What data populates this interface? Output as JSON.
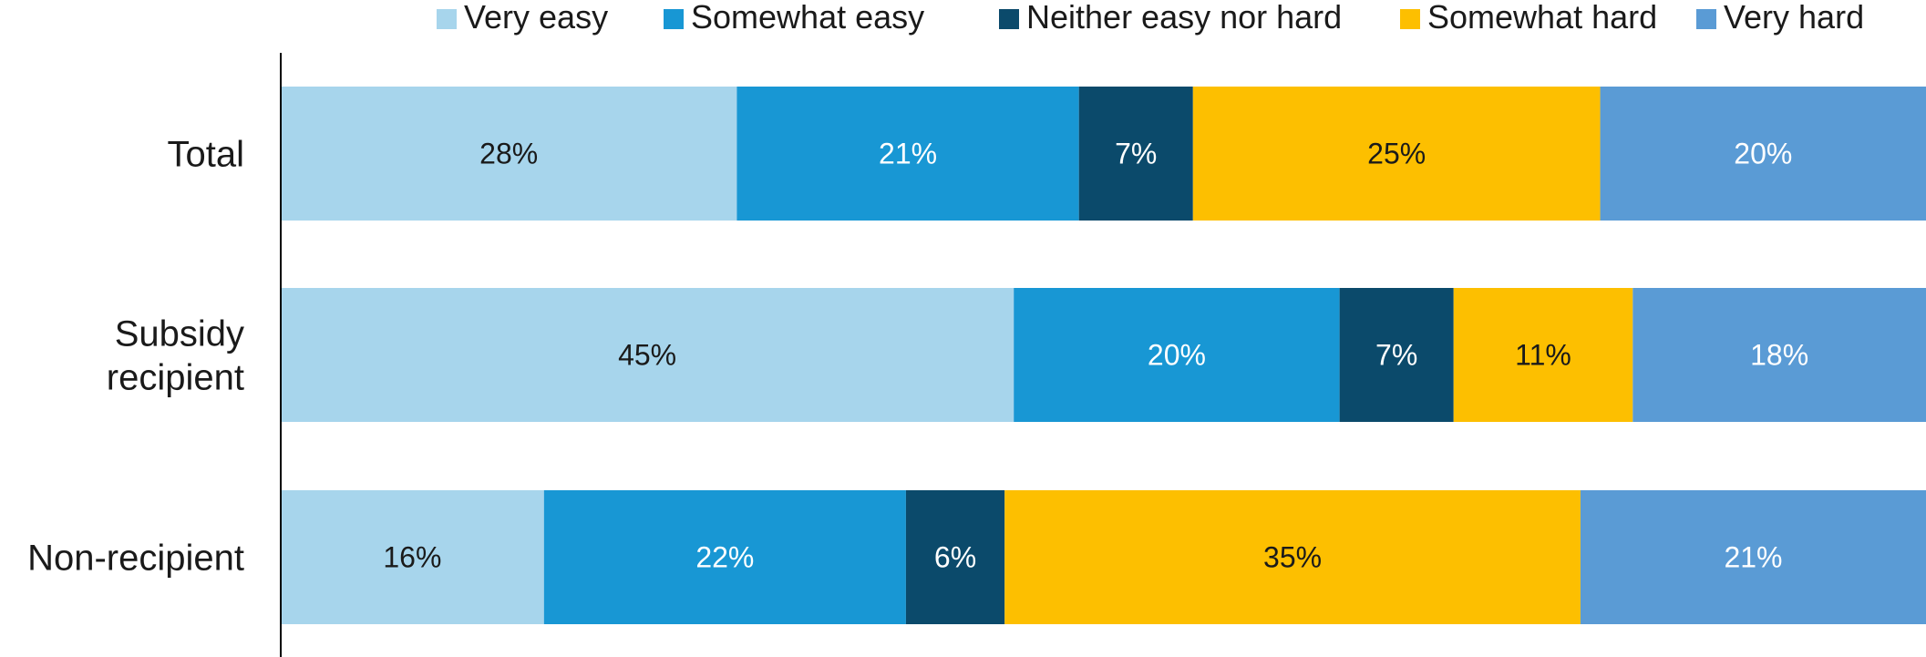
{
  "chart_data": {
    "type": "bar",
    "orientation": "horizontal",
    "stacked": true,
    "percent_stacked": true,
    "categories": [
      "Total",
      "Subsidy recipient",
      "Non-recipient"
    ],
    "series": [
      {
        "name": "Very easy",
        "color": "#a7d5ec",
        "label_color": "#1a1a1a",
        "values": [
          28,
          45,
          16
        ],
        "labels": [
          "28%",
          "45%",
          "16%"
        ]
      },
      {
        "name": "Somewhat easy",
        "color": "#1897d4",
        "label_color": "#ffffff",
        "values": [
          21,
          20,
          22
        ],
        "labels": [
          "21%",
          "20%",
          "22%"
        ]
      },
      {
        "name": "Neither easy nor hard",
        "color": "#0b4a6b",
        "label_color": "#ffffff",
        "values": [
          7,
          7,
          6
        ],
        "labels": [
          "7%",
          "7%",
          "6%"
        ]
      },
      {
        "name": "Somewhat hard",
        "color": "#fdbf00",
        "label_color": "#1a1a1a",
        "values": [
          25,
          11,
          35
        ],
        "labels": [
          "25%",
          "11%",
          "35%"
        ]
      },
      {
        "name": "Very hard",
        "color": "#5a9bd5",
        "label_color": "#ffffff",
        "values": [
          20,
          18,
          21
        ],
        "labels": [
          "20%",
          "18%",
          "21%"
        ]
      }
    ],
    "xlim": [
      0,
      100
    ],
    "legend_position": "top",
    "grid": false
  }
}
